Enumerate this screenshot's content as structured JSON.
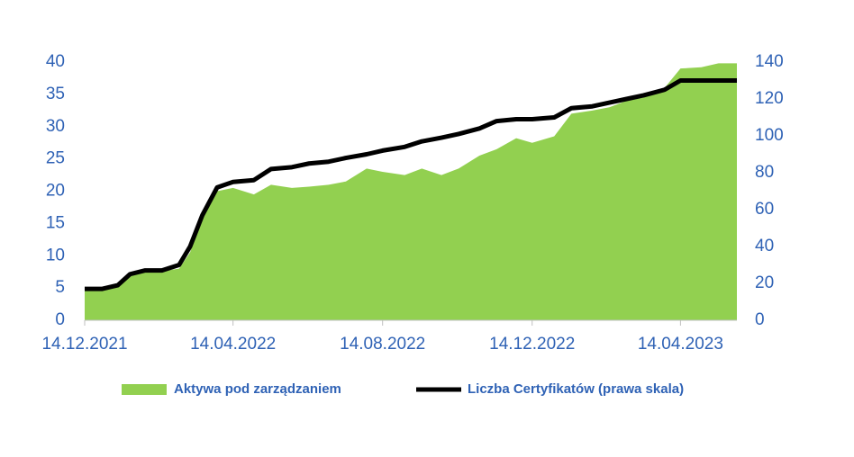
{
  "chart_data": {
    "type": "area-line",
    "x": [
      "2021-12-14",
      "2021-12-28",
      "2022-01-10",
      "2022-01-20",
      "2022-02-01",
      "2022-02-15",
      "2022-03-01",
      "2022-03-10",
      "2022-03-20",
      "2022-04-01",
      "2022-04-14",
      "2022-05-01",
      "2022-05-15",
      "2022-06-01",
      "2022-06-15",
      "2022-07-01",
      "2022-07-15",
      "2022-08-01",
      "2022-08-14",
      "2022-09-01",
      "2022-09-15",
      "2022-10-01",
      "2022-10-15",
      "2022-11-01",
      "2022-11-15",
      "2022-12-01",
      "2022-12-14",
      "2023-01-01",
      "2023-01-15",
      "2023-02-01",
      "2023-02-15",
      "2023-03-01",
      "2023-03-15",
      "2023-04-01",
      "2023-04-14",
      "2023-05-01",
      "2023-05-15",
      "2023-05-30"
    ],
    "series": [
      {
        "name": "Aktywa pod zarządzaniem",
        "color": "#92d050",
        "axis": "y",
        "values": [
          4.7,
          4.8,
          5.5,
          7.0,
          7.5,
          7.6,
          8.0,
          10.5,
          17.0,
          20.0,
          20.5,
          19.5,
          21.0,
          20.5,
          20.7,
          21.0,
          21.5,
          23.5,
          23.0,
          22.5,
          23.5,
          22.5,
          23.5,
          25.5,
          26.5,
          28.2,
          27.5,
          28.5,
          32.0,
          32.5,
          33.0,
          34.0,
          34.5,
          36.0,
          39.0,
          39.2,
          39.8,
          39.8
        ]
      },
      {
        "name": "Liczba Certyfikatów (prawa skala)",
        "color": "#000000",
        "axis": "y2",
        "values": [
          17,
          17,
          19,
          25,
          27,
          27,
          30,
          40,
          57,
          72,
          75,
          76,
          82,
          83,
          85,
          86,
          88,
          90,
          92,
          94,
          97,
          99,
          101,
          104,
          108,
          109,
          109,
          110,
          115,
          116,
          118,
          120,
          122,
          125,
          130,
          130,
          130,
          130
        ]
      }
    ],
    "xlim": [
      "2021-12-14",
      "2023-05-30"
    ],
    "xticks": [
      {
        "value": "2021-12-14",
        "label": "14.12.2021"
      },
      {
        "value": "2022-04-14",
        "label": "14.04.2022"
      },
      {
        "value": "2022-08-14",
        "label": "14.08.2022"
      },
      {
        "value": "2022-12-14",
        "label": "14.12.2022"
      },
      {
        "value": "2023-04-14",
        "label": "14.04.2023"
      }
    ],
    "ylim": [
      0,
      40
    ],
    "yticks": [
      0,
      5,
      10,
      15,
      20,
      25,
      30,
      35,
      40
    ],
    "y2lim": [
      0,
      140
    ],
    "y2ticks": [
      0,
      20,
      40,
      60,
      80,
      100,
      120,
      140
    ],
    "legend": "bottom"
  }
}
